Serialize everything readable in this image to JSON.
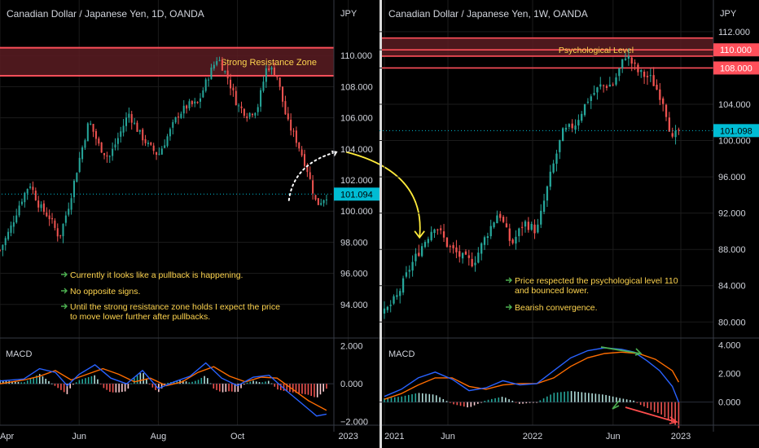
{
  "colors": {
    "background": "#000000",
    "grid": "#1b1b1b",
    "bull": "#26a69a",
    "bear": "#ef5350",
    "axis_text": "#d1d4dc",
    "zone_line": "#ff4f5a",
    "zone_fill": "#5a1c22",
    "annotation_text": "#ffd54f",
    "annotation_arrow": "#4caf50",
    "macd_line": "#2962ff",
    "signal_line": "#ff6d00",
    "price_tag": "#00bcd4",
    "forecast_arrow": "#ffeb3b",
    "divergence_down": "#ff4d4d"
  },
  "chart_data": [
    {
      "type": "candlestick",
      "title": "Canadian Dollar / Japanese Yen, 1D, OANDA",
      "currency_label": "JPY",
      "x_ticks": [
        "Apr",
        "Jun",
        "Aug",
        "Oct",
        "2023"
      ],
      "x_tick_positions": [
        0.0,
        2.0,
        4.0,
        6.0,
        8.8
      ],
      "ylim": [
        92.0,
        112.0
      ],
      "y_ticks": [
        "94.000",
        "96.000",
        "98.000",
        "100.000",
        "102.000",
        "104.000",
        "106.000",
        "108.000",
        "110.000"
      ],
      "last_price": "101.094",
      "last_value": 101.094,
      "zone": {
        "label": "Strong Resistance Zone",
        "low": 108.7,
        "high": 110.5
      },
      "forecast_path": {
        "from": [
          7.3,
          100.7
        ],
        "peak": [
          8.5,
          103.8
        ],
        "target": [
          10.6,
          98.3
        ]
      },
      "close_path": [
        [
          0.0,
          97.5
        ],
        [
          0.25,
          98.8
        ],
        [
          0.5,
          100.5
        ],
        [
          0.75,
          101.8
        ],
        [
          1.0,
          100.3
        ],
        [
          1.25,
          99.6
        ],
        [
          1.5,
          98.3
        ],
        [
          1.75,
          100.5
        ],
        [
          2.0,
          103.3
        ],
        [
          2.25,
          105.8
        ],
        [
          2.5,
          104.2
        ],
        [
          2.75,
          103.4
        ],
        [
          3.0,
          104.8
        ],
        [
          3.25,
          106.3
        ],
        [
          3.5,
          105.1
        ],
        [
          3.75,
          104.2
        ],
        [
          4.0,
          103.6
        ],
        [
          4.25,
          104.9
        ],
        [
          4.5,
          106.2
        ],
        [
          4.75,
          106.8
        ],
        [
          5.0,
          106.9
        ],
        [
          5.25,
          108.6
        ],
        [
          5.5,
          109.9
        ],
        [
          5.75,
          108.6
        ],
        [
          6.0,
          106.8
        ],
        [
          6.25,
          106.2
        ],
        [
          6.5,
          106.6
        ],
        [
          6.75,
          109.4
        ],
        [
          7.0,
          108.7
        ],
        [
          7.25,
          105.8
        ],
        [
          7.5,
          104.5
        ],
        [
          7.75,
          102.8
        ],
        [
          8.0,
          100.4
        ],
        [
          8.25,
          101.0
        ]
      ],
      "annotations": [
        "Currently it looks like a pullback is happening.",
        "No opposite signs.",
        "Until the strong resistance zone holds I expect the price",
        "to move lower further after pullbacks."
      ],
      "macd": {
        "label": "MACD",
        "ylim": [
          -2.1,
          2.2
        ],
        "y_ticks": [
          "2.000",
          "0.000",
          "−2.000"
        ],
        "y_tick_values": [
          2.0,
          0.0,
          -2.0
        ],
        "macd_path": [
          [
            0.0,
            0.15
          ],
          [
            0.6,
            0.25
          ],
          [
            1.0,
            0.8
          ],
          [
            1.4,
            0.6
          ],
          [
            1.7,
            -0.1
          ],
          [
            2.0,
            0.5
          ],
          [
            2.4,
            1.0
          ],
          [
            2.8,
            0.3
          ],
          [
            3.2,
            0.0
          ],
          [
            3.6,
            0.7
          ],
          [
            4.0,
            -0.25
          ],
          [
            4.4,
            0.1
          ],
          [
            4.8,
            0.4
          ],
          [
            5.2,
            1.1
          ],
          [
            5.6,
            0.3
          ],
          [
            6.0,
            -0.1
          ],
          [
            6.4,
            0.35
          ],
          [
            6.8,
            0.45
          ],
          [
            7.2,
            -0.3
          ],
          [
            7.6,
            -1.0
          ],
          [
            8.0,
            -1.7
          ],
          [
            8.25,
            -1.6
          ]
        ],
        "signal_path": [
          [
            0.0,
            0.0
          ],
          [
            0.6,
            0.2
          ],
          [
            1.0,
            0.4
          ],
          [
            1.4,
            0.7
          ],
          [
            1.8,
            0.2
          ],
          [
            2.2,
            0.5
          ],
          [
            2.6,
            0.8
          ],
          [
            3.0,
            0.5
          ],
          [
            3.4,
            0.1
          ],
          [
            3.8,
            0.3
          ],
          [
            4.2,
            -0.1
          ],
          [
            4.6,
            0.1
          ],
          [
            5.0,
            0.6
          ],
          [
            5.4,
            0.9
          ],
          [
            5.8,
            0.4
          ],
          [
            6.2,
            0.1
          ],
          [
            6.6,
            0.35
          ],
          [
            7.0,
            0.3
          ],
          [
            7.4,
            -0.3
          ],
          [
            7.8,
            -0.9
          ],
          [
            8.25,
            -1.4
          ]
        ]
      }
    },
    {
      "type": "candlestick",
      "title": "Canadian Dollar / Japanese Yen, 1W, OANDA",
      "currency_label": "JPY",
      "x_ticks": [
        "2021",
        "Jun",
        "2022",
        "Jun",
        "2023"
      ],
      "x_tick_positions": [
        0.0,
        1.5,
        3.5,
        5.4,
        7.0
      ],
      "ylim": [
        78.5,
        112.8
      ],
      "y_ticks": [
        "80.000",
        "84.000",
        "88.000",
        "92.000",
        "96.000",
        "100.000",
        "104.000",
        "108.000",
        "110.000",
        "112.000"
      ],
      "last_price": "101.098",
      "last_value": 101.098,
      "levels": [
        {
          "label": "110.000",
          "value": 110.0
        },
        {
          "label": "108.000",
          "value": 108.0
        },
        {
          "label": "",
          "value": 111.3
        },
        {
          "label": "",
          "value": 109.3
        }
      ],
      "psych_label": "Psychological Level",
      "close_path": [
        [
          0.0,
          81.0
        ],
        [
          0.3,
          82.8
        ],
        [
          0.6,
          86.0
        ],
        [
          0.9,
          88.5
        ],
        [
          1.2,
          90.8
        ],
        [
          1.5,
          88.4
        ],
        [
          1.8,
          87.2
        ],
        [
          2.1,
          86.5
        ],
        [
          2.4,
          89.5
        ],
        [
          2.7,
          92.2
        ],
        [
          3.0,
          88.5
        ],
        [
          3.3,
          91.0
        ],
        [
          3.6,
          90.0
        ],
        [
          3.9,
          95.8
        ],
        [
          4.2,
          100.8
        ],
        [
          4.5,
          101.8
        ],
        [
          4.8,
          104.5
        ],
        [
          5.1,
          106.0
        ],
        [
          5.4,
          106.2
        ],
        [
          5.7,
          109.5
        ],
        [
          6.0,
          107.5
        ],
        [
          6.3,
          106.8
        ],
        [
          6.6,
          104.2
        ],
        [
          6.8,
          100.0
        ],
        [
          6.95,
          101.1
        ]
      ],
      "annotations": [
        "Price respected the psychological level 110",
        "and bounced lower.",
        "Bearish convergence."
      ],
      "macd": {
        "label": "MACD",
        "ylim": [
          -1.5,
          4.2
        ],
        "y_ticks": [
          "4.000",
          "2.000",
          "0.000"
        ],
        "y_tick_values": [
          4.0,
          2.0,
          0.0
        ],
        "macd_path": [
          [
            0.0,
            0.4
          ],
          [
            0.4,
            0.9
          ],
          [
            0.8,
            1.7
          ],
          [
            1.2,
            2.1
          ],
          [
            1.6,
            1.6
          ],
          [
            2.0,
            0.8
          ],
          [
            2.4,
            1.0
          ],
          [
            2.8,
            1.5
          ],
          [
            3.2,
            1.2
          ],
          [
            3.6,
            1.3
          ],
          [
            4.0,
            2.2
          ],
          [
            4.4,
            3.1
          ],
          [
            4.8,
            3.6
          ],
          [
            5.2,
            3.8
          ],
          [
            5.6,
            3.7
          ],
          [
            5.9,
            3.5
          ],
          [
            6.2,
            2.9
          ],
          [
            6.5,
            2.2
          ],
          [
            6.8,
            1.1
          ],
          [
            6.95,
            0.0
          ]
        ],
        "signal_path": [
          [
            0.0,
            0.2
          ],
          [
            0.4,
            0.6
          ],
          [
            0.8,
            1.2
          ],
          [
            1.2,
            1.7
          ],
          [
            1.6,
            1.7
          ],
          [
            2.0,
            1.1
          ],
          [
            2.4,
            0.9
          ],
          [
            2.8,
            1.2
          ],
          [
            3.2,
            1.3
          ],
          [
            3.6,
            1.3
          ],
          [
            4.0,
            1.7
          ],
          [
            4.4,
            2.5
          ],
          [
            4.8,
            3.1
          ],
          [
            5.2,
            3.4
          ],
          [
            5.6,
            3.5
          ],
          [
            6.0,
            3.4
          ],
          [
            6.4,
            3.0
          ],
          [
            6.8,
            2.2
          ],
          [
            6.95,
            1.4
          ]
        ]
      }
    }
  ]
}
